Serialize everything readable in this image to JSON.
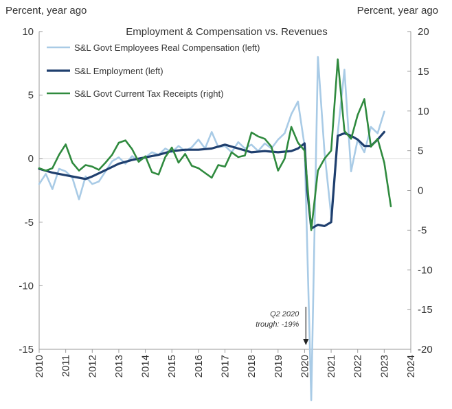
{
  "chart_data": {
    "type": "line",
    "title": "Employment & Compensation vs. Revenues",
    "left_axis_label": "Percent, year ago",
    "right_axis_label": "Percent, year ago",
    "left_ylim": [
      -15,
      10
    ],
    "right_ylim": [
      -20,
      20
    ],
    "left_ticks": [
      10,
      5,
      0,
      -5,
      -10,
      -15
    ],
    "right_ticks": [
      20,
      15,
      10,
      5,
      0,
      -5,
      -10,
      -15,
      -20
    ],
    "xlim": [
      2010,
      2024
    ],
    "x_ticks": [
      "2010",
      "2011",
      "2012",
      "2013",
      "2014",
      "2015",
      "2016",
      "2017",
      "2018",
      "2019",
      "2020",
      "2021",
      "2022",
      "2023",
      "2024"
    ],
    "legend_position": "top-left",
    "annotation": {
      "lines": [
        "Q2 2020",
        "trough: -19%"
      ],
      "x": 2020.1
    },
    "series": [
      {
        "name": "S&L Govt Employees Real Compensation (left)",
        "axis": "left",
        "color": "#a9cbe6",
        "points": [
          [
            2010.0,
            -2.0
          ],
          [
            2010.25,
            -1.2
          ],
          [
            2010.5,
            -2.4
          ],
          [
            2010.75,
            -0.8
          ],
          [
            2011.0,
            -1.0
          ],
          [
            2011.25,
            -1.5
          ],
          [
            2011.5,
            -3.2
          ],
          [
            2011.75,
            -1.4
          ],
          [
            2012.0,
            -2.0
          ],
          [
            2012.25,
            -1.8
          ],
          [
            2012.5,
            -1.0
          ],
          [
            2012.75,
            -0.2
          ],
          [
            2013.0,
            0.1
          ],
          [
            2013.25,
            -0.4
          ],
          [
            2013.5,
            0.2
          ],
          [
            2013.75,
            -0.2
          ],
          [
            2014.0,
            0.1
          ],
          [
            2014.25,
            0.5
          ],
          [
            2014.5,
            0.3
          ],
          [
            2014.75,
            0.8
          ],
          [
            2015.0,
            0.5
          ],
          [
            2015.25,
            1.0
          ],
          [
            2015.5,
            0.6
          ],
          [
            2015.75,
            0.9
          ],
          [
            2016.0,
            1.5
          ],
          [
            2016.25,
            0.8
          ],
          [
            2016.5,
            2.1
          ],
          [
            2016.75,
            0.9
          ],
          [
            2017.0,
            1.0
          ],
          [
            2017.25,
            0.5
          ],
          [
            2017.5,
            1.3
          ],
          [
            2017.75,
            0.8
          ],
          [
            2018.0,
            1.1
          ],
          [
            2018.25,
            0.6
          ],
          [
            2018.5,
            1.2
          ],
          [
            2018.75,
            0.8
          ],
          [
            2019.0,
            1.5
          ],
          [
            2019.25,
            2.0
          ],
          [
            2019.5,
            3.5
          ],
          [
            2019.75,
            4.5
          ],
          [
            2020.0,
            1.0
          ],
          [
            2020.25,
            -19.0
          ],
          [
            2020.5,
            8.0
          ],
          [
            2020.75,
            0.5
          ],
          [
            2021.0,
            -4.5
          ],
          [
            2021.25,
            2.0
          ],
          [
            2021.5,
            7.0
          ],
          [
            2021.75,
            -1.0
          ],
          [
            2022.0,
            1.5
          ],
          [
            2022.25,
            0.5
          ],
          [
            2022.5,
            2.5
          ],
          [
            2022.75,
            2.0
          ],
          [
            2023.0,
            3.7
          ]
        ]
      },
      {
        "name": "S&L Employment (left)",
        "axis": "left",
        "color": "#1f3f6e",
        "points": [
          [
            2010.0,
            -0.8
          ],
          [
            2010.5,
            -1.1
          ],
          [
            2011.0,
            -1.3
          ],
          [
            2011.5,
            -1.5
          ],
          [
            2011.75,
            -1.6
          ],
          [
            2012.0,
            -1.4
          ],
          [
            2012.5,
            -0.9
          ],
          [
            2013.0,
            -0.4
          ],
          [
            2013.5,
            -0.1
          ],
          [
            2014.0,
            0.1
          ],
          [
            2014.5,
            0.3
          ],
          [
            2015.0,
            0.6
          ],
          [
            2015.5,
            0.7
          ],
          [
            2016.0,
            0.7
          ],
          [
            2016.5,
            0.8
          ],
          [
            2017.0,
            1.1
          ],
          [
            2017.5,
            0.8
          ],
          [
            2018.0,
            0.5
          ],
          [
            2018.5,
            0.6
          ],
          [
            2019.0,
            0.5
          ],
          [
            2019.5,
            0.6
          ],
          [
            2019.75,
            0.8
          ],
          [
            2020.0,
            1.2
          ],
          [
            2020.1,
            -2.5
          ],
          [
            2020.25,
            -5.5
          ],
          [
            2020.5,
            -5.2
          ],
          [
            2020.75,
            -5.3
          ],
          [
            2021.0,
            -5.0
          ],
          [
            2021.25,
            1.8
          ],
          [
            2021.5,
            2.0
          ],
          [
            2021.75,
            1.8
          ],
          [
            2022.0,
            1.5
          ],
          [
            2022.25,
            1.0
          ],
          [
            2022.5,
            1.0
          ],
          [
            2022.75,
            1.5
          ],
          [
            2023.0,
            2.1
          ]
        ]
      },
      {
        "name": "S&L Govt Current Tax Receipts (right)",
        "axis": "right",
        "color": "#2f8a3e",
        "points": [
          [
            2010.0,
            2.8
          ],
          [
            2010.25,
            2.5
          ],
          [
            2010.5,
            2.8
          ],
          [
            2010.75,
            4.5
          ],
          [
            2011.0,
            5.8
          ],
          [
            2011.25,
            3.5
          ],
          [
            2011.5,
            2.5
          ],
          [
            2011.75,
            3.2
          ],
          [
            2012.0,
            3.0
          ],
          [
            2012.25,
            2.6
          ],
          [
            2012.5,
            3.5
          ],
          [
            2012.75,
            4.5
          ],
          [
            2013.0,
            6.0
          ],
          [
            2013.25,
            6.3
          ],
          [
            2013.5,
            5.2
          ],
          [
            2013.75,
            3.6
          ],
          [
            2014.0,
            4.3
          ],
          [
            2014.25,
            2.3
          ],
          [
            2014.5,
            2.0
          ],
          [
            2014.75,
            4.2
          ],
          [
            2015.0,
            5.4
          ],
          [
            2015.25,
            3.5
          ],
          [
            2015.5,
            4.6
          ],
          [
            2015.75,
            3.1
          ],
          [
            2016.0,
            2.8
          ],
          [
            2016.25,
            2.2
          ],
          [
            2016.5,
            1.6
          ],
          [
            2016.75,
            3.2
          ],
          [
            2017.0,
            3.0
          ],
          [
            2017.25,
            4.8
          ],
          [
            2017.5,
            4.2
          ],
          [
            2017.75,
            4.4
          ],
          [
            2018.0,
            7.3
          ],
          [
            2018.25,
            6.8
          ],
          [
            2018.5,
            6.5
          ],
          [
            2018.75,
            5.5
          ],
          [
            2019.0,
            2.5
          ],
          [
            2019.25,
            4.0
          ],
          [
            2019.5,
            8.0
          ],
          [
            2019.75,
            6.0
          ],
          [
            2020.0,
            5.0
          ],
          [
            2020.25,
            -5.0
          ],
          [
            2020.5,
            2.5
          ],
          [
            2020.75,
            4.0
          ],
          [
            2021.0,
            5.0
          ],
          [
            2021.25,
            16.5
          ],
          [
            2021.5,
            7.5
          ],
          [
            2021.75,
            6.5
          ],
          [
            2022.0,
            9.5
          ],
          [
            2022.25,
            11.5
          ],
          [
            2022.5,
            5.5
          ],
          [
            2022.75,
            6.5
          ],
          [
            2023.0,
            3.5
          ],
          [
            2023.25,
            -2.0
          ]
        ]
      }
    ]
  }
}
